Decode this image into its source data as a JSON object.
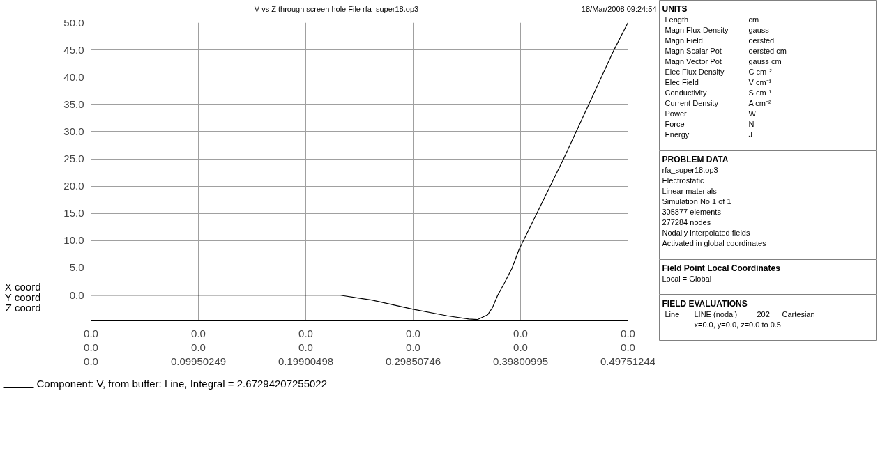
{
  "chart_data": [
    {
      "type": "line",
      "title": "V vs Z through screen hole   File rfa_super18.op3",
      "annotations": [
        "18/Mar/2008 09:24:54",
        "X coord",
        "0.0",
        "0.0",
        "0.0",
        "0.0",
        "0.0",
        "0.0",
        "Y coord",
        "0.0",
        "0.0",
        "0.0",
        "0.0",
        "0.0",
        "0.0",
        "Z coord"
      ],
      "x": [
        0,
        0.23,
        0.26,
        0.2985,
        0.33,
        0.35,
        0.358,
        0.3676,
        0.372,
        0.3767,
        0.383,
        0.39,
        0.3967,
        0.4379,
        0.4846,
        0.49751244
      ],
      "series": [
        {
          "name": "Component: V, from buffer: Line, Integral = 2.67294207255022",
          "color": "#000000",
          "values": [
            0,
            0,
            -0.9,
            -2.6,
            -3.8,
            -4.4,
            -4.5,
            -3.6,
            -2.3,
            -0.1,
            2.2,
            4.9,
            8.4,
            25.0,
            45.0,
            50.0
          ]
        }
      ],
      "xlim": [
        0,
        0.49751244
      ],
      "ylim": [
        -4.6,
        50
      ],
      "xticks": [
        {
          "value": 0,
          "label": "0.0"
        },
        0.09950249,
        0.19900498,
        0.29850746,
        0.39800995,
        0.49751244
      ],
      "yticks": [
        {
          "value": 0,
          "label": "0.0"
        },
        {
          "value": 5,
          "label": "5.0"
        },
        {
          "value": 10,
          "label": "10.0"
        },
        {
          "value": 15,
          "label": "15.0"
        },
        {
          "value": 20,
          "label": "20.0"
        },
        {
          "value": 25,
          "label": "25.0"
        },
        {
          "value": 30,
          "label": "30.0"
        },
        {
          "value": 35,
          "label": "35.0"
        },
        {
          "value": 40,
          "label": "40.0"
        },
        {
          "value": 45,
          "label": "45.0"
        },
        {
          "value": 50,
          "label": "50.0"
        }
      ],
      "grid": true,
      "legend": "bottom left",
      "marker": "none",
      "line_style": "solid"
    },
    {
      "type": "other",
      "title": "UNITS",
      "annotations": [
        "Length\tcm",
        "Magn Flux Density\tgauss",
        "Magn Field\toersted",
        "Magn Scalar Pot\toersted cm",
        "Magn Vector Pot\tgauss cm",
        "Elec Flux Density\tC cm⁻²",
        "Elec Field\tV cm⁻¹",
        "Conductivity\tS cm⁻¹",
        "Current Density\tA cm⁻²",
        "Power\tW",
        "Force\tN",
        "Energy\tJ"
      ]
    },
    {
      "type": "other",
      "title": "PROBLEM DATA",
      "annotations": [
        "rfa_super18.op3",
        "Electrostatic",
        "Linear materials",
        "Simulation No 1 of 1",
        "305877 elements",
        "277284 nodes",
        "Nodally interpolated fields",
        "Activated in global coordinates"
      ]
    },
    {
      "type": "other",
      "title": "Field Point Local Coordinates",
      "annotations": [
        "Local = Global"
      ]
    },
    {
      "type": "other",
      "title": "FIELD EVALUATIONS",
      "annotations": [
        "Line\tLINE (nodal)\t202\tCartesian",
        "\tx=0.0, y=0.0, z=0.0 to 0.5"
      ]
    }
  ]
}
